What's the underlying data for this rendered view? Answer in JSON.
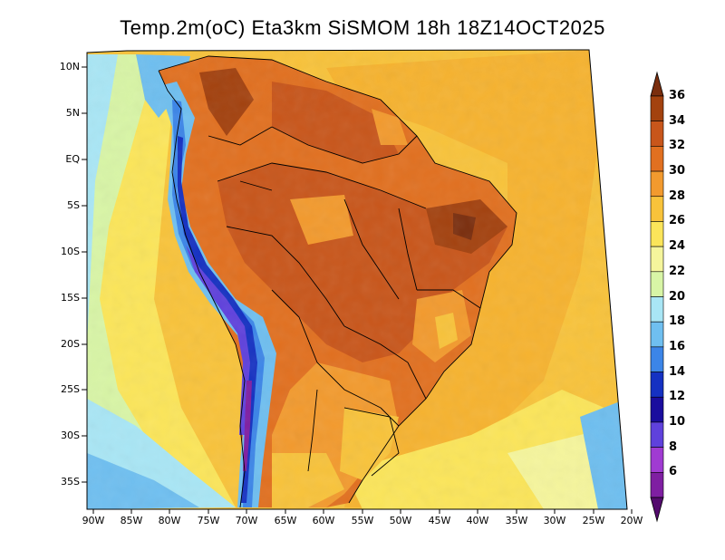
{
  "title": "Temp.2m(oC) Eta3km SiSMOM 18h 18Z14OCT2025",
  "lat_labels": [
    "10N",
    "5N",
    "EQ",
    "5S",
    "10S",
    "15S",
    "20S",
    "25S",
    "30S",
    "35S"
  ],
  "lon_labels": [
    "90W",
    "85W",
    "80W",
    "75W",
    "70W",
    "65W",
    "60W",
    "55W",
    "50W",
    "45W",
    "40W",
    "35W",
    "30W",
    "25W",
    "20W"
  ],
  "colorbar": {
    "labels": [
      "36",
      "34",
      "32",
      "30",
      "28",
      "26",
      "24",
      "22",
      "20",
      "18",
      "16",
      "14",
      "12",
      "10",
      "8",
      "6"
    ],
    "colors": [
      "#7a2e0e",
      "#a3420f",
      "#c8561b",
      "#e17020",
      "#f29a2e",
      "#f8c33b",
      "#fbe55a",
      "#f5f59c",
      "#d8f5a6",
      "#a9e6f5",
      "#6fbff0",
      "#3c85e8",
      "#1531c2",
      "#1a0d9e",
      "#5f41dc",
      "#a03bd2",
      "#7f1fa2",
      "#540b6e"
    ]
  }
}
